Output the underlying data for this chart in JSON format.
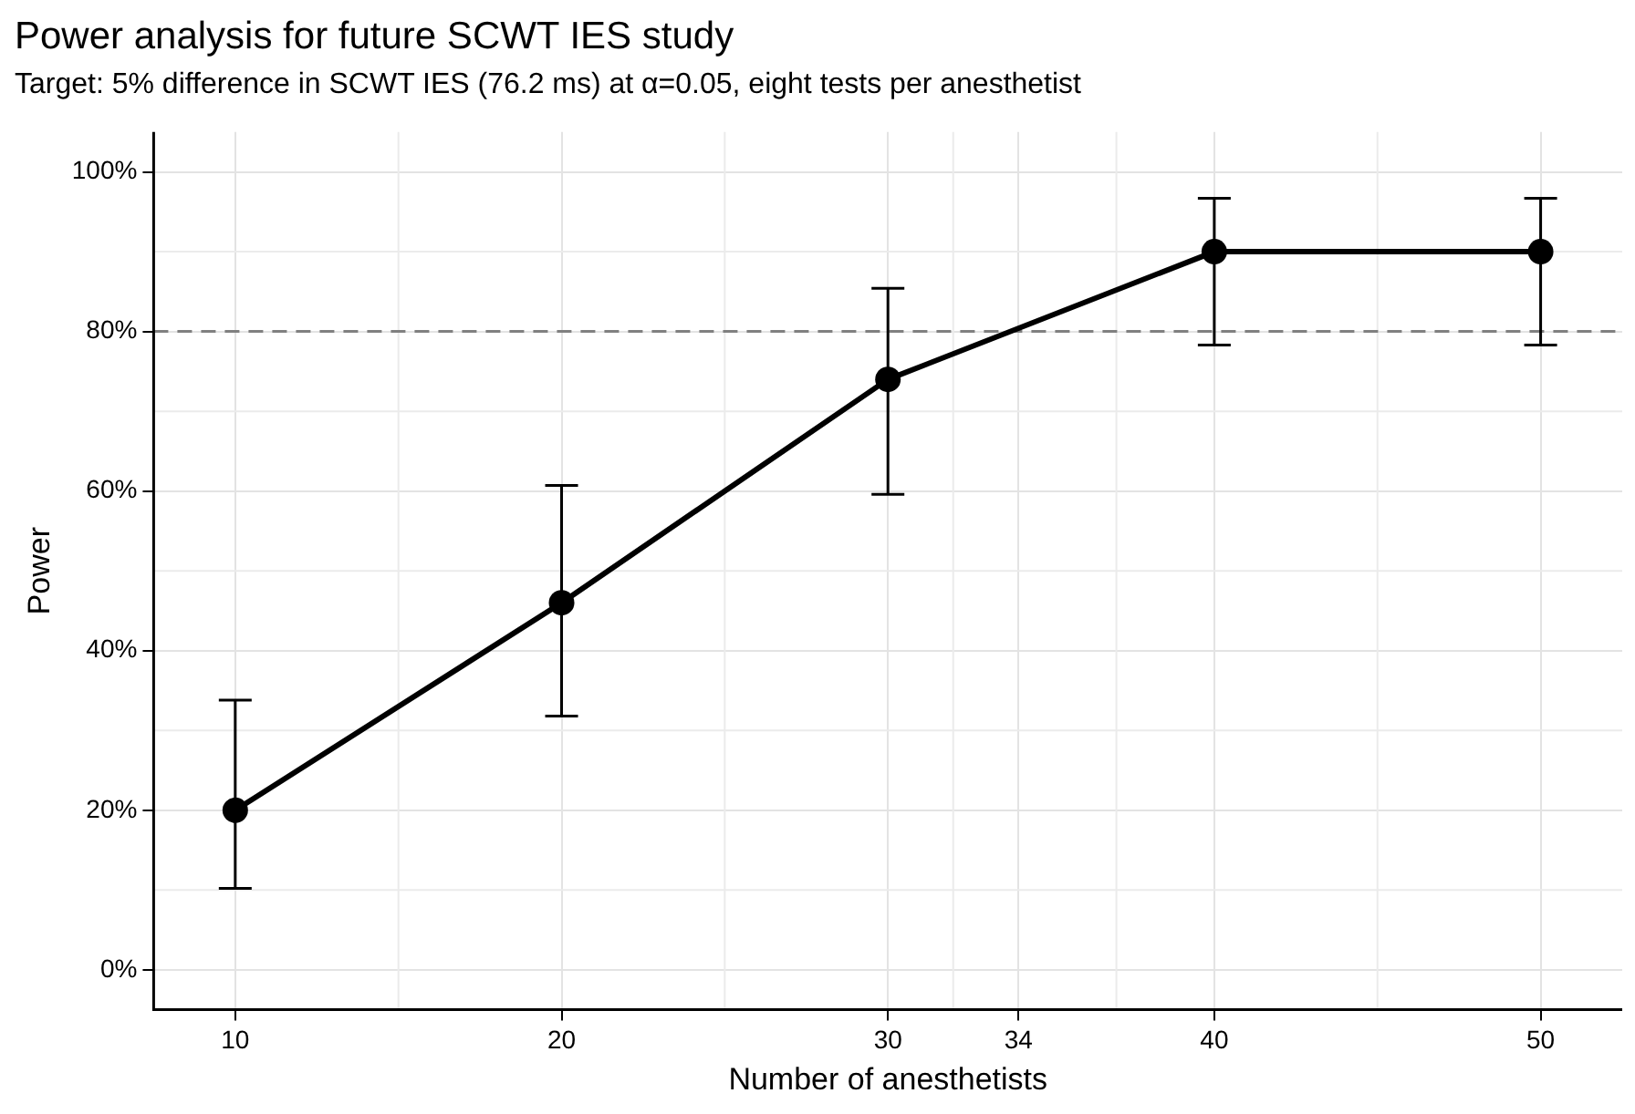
{
  "chart_data": {
    "type": "line",
    "title": "Power analysis for future SCWT IES study",
    "subtitle": "Target: 5% difference in SCWT IES (76.2 ms) at α=0.05, eight tests per anesthetist",
    "xlabel": "Number of anesthetists",
    "ylabel": "Power",
    "x": [
      10,
      20,
      30,
      40,
      50
    ],
    "series": [
      {
        "color": "#000000",
        "values": [
          20,
          46,
          74,
          90,
          90
        ],
        "errors": [
          [
            10.2,
            33.8
          ],
          [
            31.8,
            60.7
          ],
          [
            59.6,
            85.4
          ],
          [
            78.3,
            96.7
          ],
          [
            78.3,
            96.7
          ]
        ]
      }
    ],
    "xlim": [
      7.5,
      52.5
    ],
    "xticks": [
      10,
      20,
      30,
      34,
      40,
      50
    ],
    "ylim": [
      -5,
      105
    ],
    "yticks": [
      {
        "value": 0,
        "label": "0%"
      },
      {
        "value": 20,
        "label": "20%"
      },
      {
        "value": 40,
        "label": "40%"
      },
      {
        "value": 60,
        "label": "60%"
      },
      {
        "value": 80,
        "label": "80%"
      },
      {
        "value": 100,
        "label": "100%"
      }
    ],
    "ref_lines": [
      {
        "axis": "y",
        "value": 80,
        "color": "#808080",
        "line_style": "dashed"
      }
    ],
    "grid": true,
    "legend": false,
    "marker": "circle",
    "line_style": "solid"
  }
}
